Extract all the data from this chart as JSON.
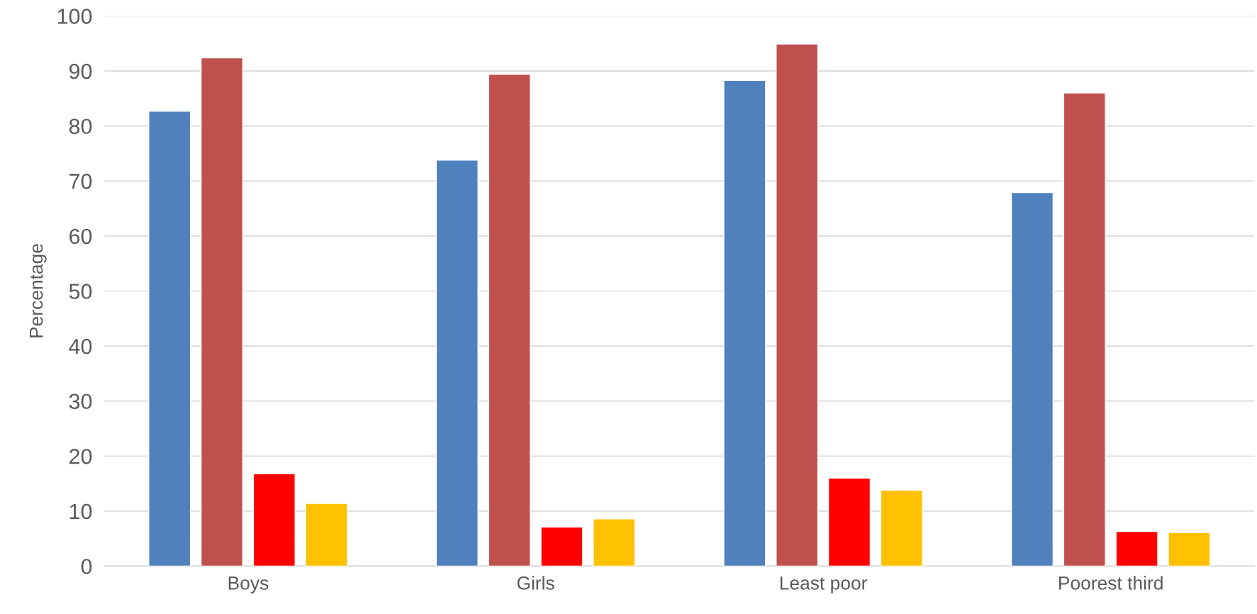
{
  "chart_data": {
    "type": "bar",
    "ylabel": "Percentage",
    "categories": [
      "Boys",
      "Girls",
      "Least poor",
      "Poorest third"
    ],
    "series": [
      {
        "color": "#4f81bd",
        "values": [
          82.7,
          73.8,
          88.3,
          67.9
        ]
      },
      {
        "color": "#c0504d",
        "values": [
          92.4,
          89.4,
          94.9,
          86.0
        ]
      },
      {
        "color": "#ff0000",
        "values": [
          16.8,
          7.1,
          16.0,
          6.3
        ]
      },
      {
        "color": "#ffc000",
        "values": [
          11.4,
          8.6,
          13.8,
          6.1
        ]
      }
    ],
    "ylim": [
      0,
      100
    ],
    "yticks": [
      0,
      10,
      20,
      30,
      40,
      50,
      60,
      70,
      80,
      90,
      100
    ],
    "grid": "y"
  }
}
